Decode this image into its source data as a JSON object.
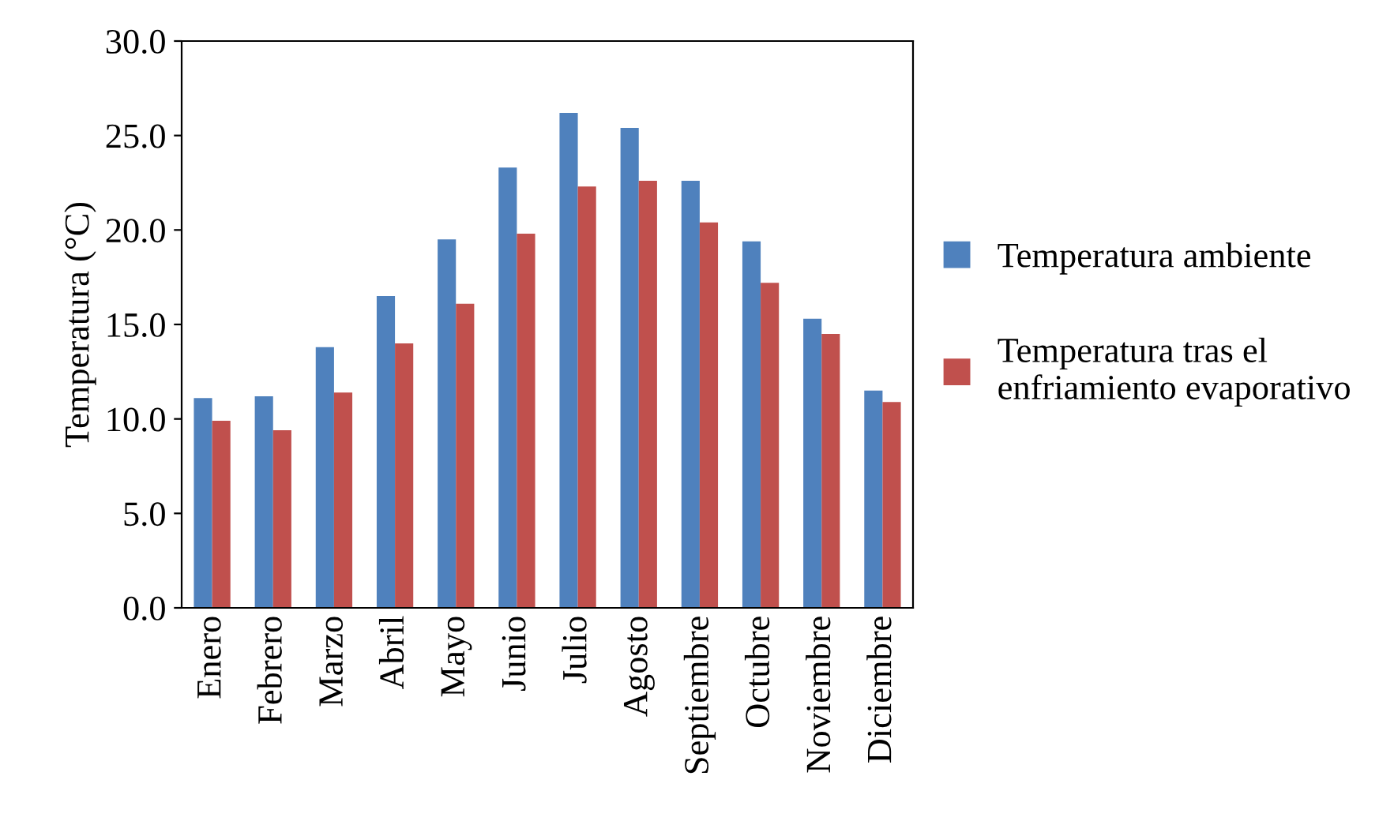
{
  "chart_data": {
    "type": "bar",
    "ylabel": "Temperatura (°C)",
    "categories": [
      "Enero",
      "Febrero",
      "Marzo",
      "Abril",
      "Mayo",
      "Junio",
      "Julio",
      "Agosto",
      "Septiembre",
      "Octubre",
      "Noviembre",
      "Diciembre"
    ],
    "series": [
      {
        "name": "Temperatura ambiente",
        "color": "#4f81bd",
        "values": [
          11.1,
          11.2,
          13.8,
          16.5,
          19.5,
          23.3,
          26.2,
          25.4,
          22.6,
          19.4,
          15.3,
          11.5
        ]
      },
      {
        "name": "Temperatura tras el\nenfriamiento evaporativo",
        "color": "#c0504d",
        "values": [
          9.9,
          9.4,
          11.4,
          14.0,
          16.1,
          19.8,
          22.3,
          22.6,
          20.4,
          17.2,
          14.5,
          10.9
        ]
      }
    ],
    "ylim": [
      0,
      30
    ],
    "yticks": [
      {
        "value": 0,
        "label": "0.0"
      },
      {
        "value": 5,
        "label": "5.0"
      },
      {
        "value": 10,
        "label": "10.0"
      },
      {
        "value": 15,
        "label": "15.0"
      },
      {
        "value": 20,
        "label": "20.0"
      },
      {
        "value": 25,
        "label": "25.0"
      },
      {
        "value": 30,
        "label": "30.0"
      }
    ],
    "grid": false,
    "legend": "right"
  }
}
